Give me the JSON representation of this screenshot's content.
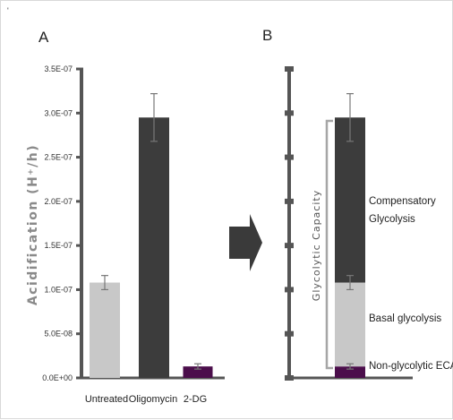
{
  "corner_mark": "'",
  "panel_a": {
    "label": "A",
    "ylabel": "Acidification (H⁺/h)",
    "ytick_labels": [
      "0.0E+00",
      "5.0E-08",
      "1.0E-07",
      "1.5E-07",
      "2.0E-07",
      "2.5E-07",
      "3.0E-07",
      "3.5E-07"
    ]
  },
  "panel_b": {
    "label": "B",
    "bracket_label": "Glycolytic Capacity",
    "annotations": [
      "Compensatory",
      "Glycolysis",
      "Basal glycolysis",
      "Non-glycolytic ECA"
    ]
  },
  "colors": {
    "axis": "#555555",
    "untreated": "#c8c8c8",
    "oligomycin": "#3c3c3c",
    "two_dg": "#4b0e4b",
    "bracket": "#a6a6a6",
    "arrow": "#3a3a3a"
  },
  "chart_data": [
    {
      "type": "bar",
      "title": "",
      "ylabel": "Acidification (H⁺/h)",
      "categories": [
        "Untreated",
        "Oligomycin",
        "2-DG"
      ],
      "values": [
        1.08e-07,
        2.95e-07,
        1.3e-08
      ],
      "error": [
        8e-09,
        2.7e-08,
        3e-09
      ],
      "ylim": [
        0,
        3.5e-07
      ],
      "grid": false
    },
    {
      "type": "bar",
      "stacked": true,
      "title": "",
      "categories": [
        ""
      ],
      "series": [
        {
          "values": [
            1.3e-08
          ]
        },
        {
          "values": [
            9.5e-08
          ]
        },
        {
          "values": [
            1.87e-07
          ]
        }
      ],
      "ylim": [
        0,
        3.5e-07
      ],
      "grid": false
    }
  ]
}
